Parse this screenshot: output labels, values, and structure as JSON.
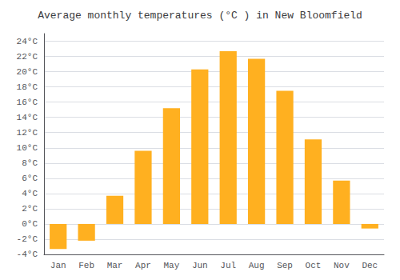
{
  "chart_data": {
    "type": "bar",
    "title": "Average monthly temperatures (°C ) in New Bloomfield",
    "categories": [
      "Jan",
      "Feb",
      "Mar",
      "Apr",
      "May",
      "Jun",
      "Jul",
      "Aug",
      "Sep",
      "Oct",
      "Nov",
      "Dec"
    ],
    "values": [
      -3.3,
      -2.2,
      3.7,
      9.6,
      15.2,
      20.3,
      22.7,
      21.7,
      17.5,
      11.1,
      5.7,
      -0.6
    ],
    "color": "#FFB020",
    "ylim": [
      -4,
      25
    ],
    "yticks": [
      {
        "value": -4,
        "label": "-4°C"
      },
      {
        "value": -2,
        "label": "-2°C"
      },
      {
        "value": 0,
        "label": "0°C"
      },
      {
        "value": 2,
        "label": "2°C"
      },
      {
        "value": 4,
        "label": "4°C"
      },
      {
        "value": 6,
        "label": "6°C"
      },
      {
        "value": 8,
        "label": "8°C"
      },
      {
        "value": 10,
        "label": "10°C"
      },
      {
        "value": 12,
        "label": "12°C"
      },
      {
        "value": 14,
        "label": "14°C"
      },
      {
        "value": 16,
        "label": "16°C"
      },
      {
        "value": 18,
        "label": "18°C"
      },
      {
        "value": 20,
        "label": "20°C"
      },
      {
        "value": 22,
        "label": "22°C"
      },
      {
        "value": 24,
        "label": "24°C"
      }
    ],
    "grid": true
  }
}
